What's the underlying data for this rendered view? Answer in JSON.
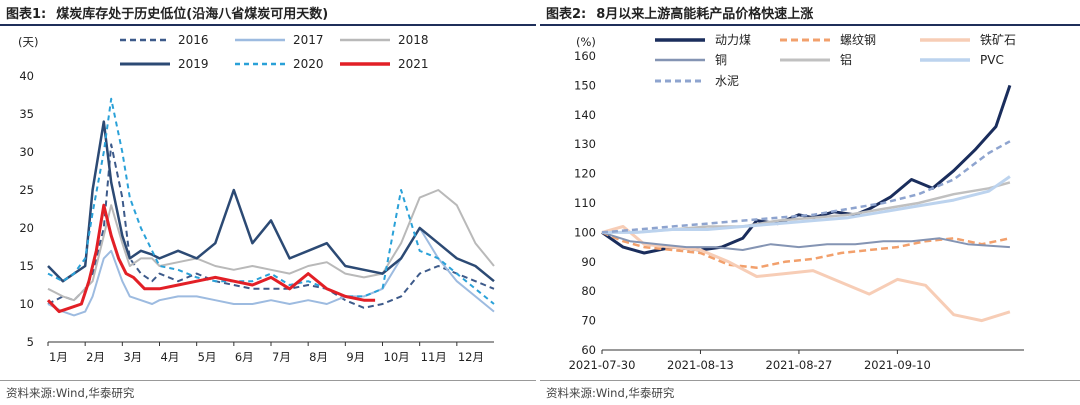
{
  "left": {
    "title_label": "图表1:",
    "title_text": "煤炭库存处于历史低位(沿海八省煤炭可用天数)",
    "source": "资料来源:Wind,华泰研究",
    "chart_data": {
      "type": "line",
      "ylabel": "(天)",
      "ylim": [
        5,
        40
      ],
      "yticks": [
        "5",
        "10",
        "15",
        "20",
        "25",
        "30",
        "35",
        "40"
      ],
      "xticks": [
        "1月",
        "2月",
        "3月",
        "4月",
        "5月",
        "6月",
        "7月",
        "8月",
        "9月",
        "10月",
        "11月",
        "12月"
      ],
      "legend_position": "top",
      "series": [
        {
          "name": "2016",
          "color": "#3d5a8a",
          "dash": "6,4",
          "width": 2,
          "x": [
            0,
            0.4,
            0.7,
            1.0,
            1.2,
            1.5,
            1.7,
            2.0,
            2.2,
            2.5,
            2.8,
            3.0,
            3.5,
            4.0,
            4.5,
            5.0,
            5.5,
            6.0,
            6.5,
            7.0,
            7.5,
            8.0,
            8.5,
            9.0,
            9.5,
            10.0,
            10.5,
            11.0,
            11.5,
            12.0
          ],
          "y": [
            10,
            11,
            10.5,
            12,
            14,
            20,
            31,
            24,
            16,
            14,
            13,
            14,
            13,
            14,
            13,
            12.5,
            12,
            12,
            12,
            12.5,
            12,
            10.5,
            9.5,
            10,
            11,
            14,
            15,
            14,
            13,
            12
          ]
        },
        {
          "name": "2017",
          "color": "#9dbbe0",
          "dash": "",
          "width": 2,
          "x": [
            0,
            0.4,
            0.7,
            1.0,
            1.2,
            1.5,
            1.7,
            2.0,
            2.2,
            2.5,
            2.8,
            3.0,
            3.5,
            4.0,
            4.5,
            5.0,
            5.5,
            6.0,
            6.5,
            7.0,
            7.5,
            8.0,
            8.5,
            9.0,
            9.5,
            10.0,
            10.5,
            11.0,
            11.5,
            12.0
          ],
          "y": [
            10,
            9,
            8.5,
            9,
            11,
            16,
            17,
            13,
            11,
            10.5,
            10,
            10.5,
            11,
            11,
            10.5,
            10,
            10,
            10.5,
            10,
            10.5,
            10,
            11,
            11,
            12,
            16,
            20,
            16,
            13,
            11,
            9
          ]
        },
        {
          "name": "2018",
          "color": "#b9b9b9",
          "dash": "",
          "width": 2,
          "x": [
            0,
            0.4,
            0.7,
            1.0,
            1.2,
            1.5,
            1.7,
            2.0,
            2.2,
            2.5,
            2.8,
            3.0,
            3.5,
            4.0,
            4.5,
            5.0,
            5.5,
            6.0,
            6.5,
            7.0,
            7.5,
            8.0,
            8.5,
            9.0,
            9.5,
            10.0,
            10.5,
            11.0,
            11.5,
            12.0
          ],
          "y": [
            12,
            11,
            10.5,
            12,
            13,
            19,
            23,
            18,
            15,
            16,
            16,
            15,
            15.5,
            16,
            15,
            14.5,
            15,
            14.5,
            14,
            15,
            15.5,
            14,
            13.5,
            14,
            18,
            24,
            25,
            23,
            18,
            15
          ]
        },
        {
          "name": "2019",
          "color": "#2c4a74",
          "dash": "",
          "width": 2.5,
          "x": [
            0,
            0.4,
            0.7,
            1.0,
            1.2,
            1.5,
            1.7,
            2.0,
            2.2,
            2.5,
            2.8,
            3.0,
            3.5,
            4.0,
            4.5,
            5.0,
            5.5,
            6.0,
            6.5,
            7.0,
            7.5,
            8.0,
            8.5,
            9.0,
            9.5,
            10.0,
            10.5,
            11.0,
            11.5,
            12.0
          ],
          "y": [
            15,
            13,
            14,
            15,
            25,
            34,
            26,
            19,
            16,
            17,
            16.5,
            16,
            17,
            16,
            18,
            25,
            18,
            21,
            16,
            17,
            18,
            15,
            14.5,
            14,
            16,
            20,
            18,
            16,
            15,
            13
          ]
        },
        {
          "name": "2020",
          "color": "#2aa1d8",
          "dash": "5,4",
          "width": 2,
          "x": [
            0,
            0.4,
            0.7,
            1.0,
            1.2,
            1.5,
            1.7,
            2.0,
            2.2,
            2.5,
            2.8,
            3.0,
            3.5,
            4.0,
            4.5,
            5.0,
            5.5,
            6.0,
            6.5,
            7.0,
            7.5,
            8.0,
            8.5,
            9.0,
            9.5,
            10.0,
            10.5,
            11.0,
            11.5,
            12.0
          ],
          "y": [
            14,
            13,
            14,
            16,
            22,
            30,
            37,
            30,
            24,
            20,
            17,
            15,
            14.5,
            13.5,
            13,
            13,
            13,
            14,
            12.5,
            13,
            12,
            11,
            11,
            12,
            25,
            17,
            16,
            14,
            12,
            10
          ]
        },
        {
          "name": "2021",
          "color": "#e21f26",
          "dash": "",
          "width": 3,
          "x": [
            0,
            0.3,
            0.6,
            0.9,
            1.1,
            1.3,
            1.5,
            1.7,
            1.9,
            2.1,
            2.3,
            2.6,
            3.0,
            3.5,
            4.0,
            4.5,
            5.0,
            5.5,
            6.0,
            6.5,
            7.0,
            7.5,
            8.0,
            8.5,
            8.8
          ],
          "y": [
            10.5,
            9,
            9.5,
            10,
            13,
            17,
            23,
            19,
            16,
            14,
            13.5,
            12,
            12,
            12.5,
            13,
            13.5,
            13,
            12.5,
            13.5,
            12,
            14,
            12,
            11,
            10.5,
            10.5
          ]
        }
      ]
    }
  },
  "right": {
    "title_label": "图表2:",
    "title_text": "8月以来上游高能耗产品价格快速上涨",
    "source": "资料来源:Wind,华泰研究",
    "chart_data": {
      "type": "line",
      "ylabel": "(%)",
      "ylim": [
        60,
        160
      ],
      "yticks": [
        "60",
        "70",
        "80",
        "90",
        "100",
        "110",
        "120",
        "130",
        "140",
        "150",
        "160"
      ],
      "xlim": [
        0,
        60
      ],
      "xticks": [
        {
          "x": 0,
          "label": "2021-07-30"
        },
        {
          "x": 14,
          "label": "2021-08-13"
        },
        {
          "x": 28,
          "label": "2021-08-27"
        },
        {
          "x": 42,
          "label": "2021-09-10"
        }
      ],
      "legend_position": "top",
      "series": [
        {
          "name": "动力煤",
          "color": "#1a2d5c",
          "dash": "",
          "width": 3,
          "x": [
            0,
            3,
            6,
            10,
            14,
            17,
            20,
            22,
            25,
            28,
            30,
            33,
            36,
            38,
            41,
            44,
            47,
            50,
            53,
            56,
            58
          ],
          "y": [
            100,
            95,
            93,
            95,
            94,
            95,
            98,
            104,
            103,
            106,
            105,
            107,
            106,
            108,
            112,
            118,
            115,
            121,
            128,
            136,
            150
          ]
        },
        {
          "name": "螺纹钢",
          "color": "#f2a06c",
          "dash": "7,4",
          "width": 2.5,
          "x": [
            0,
            3,
            6,
            10,
            14,
            18,
            22,
            26,
            30,
            34,
            38,
            42,
            46,
            50,
            54,
            58
          ],
          "y": [
            100,
            97,
            95,
            94,
            93,
            89,
            88,
            90,
            91,
            93,
            94,
            95,
            97,
            98,
            96,
            98
          ]
        },
        {
          "name": "铁矿石",
          "color": "#f7cdb6",
          "dash": "",
          "width": 3,
          "x": [
            0,
            3,
            6,
            10,
            14,
            18,
            22,
            26,
            30,
            34,
            38,
            42,
            46,
            50,
            54,
            58
          ],
          "y": [
            100,
            102,
            96,
            95,
            94,
            90,
            85,
            86,
            87,
            83,
            79,
            84,
            82,
            72,
            70,
            73
          ]
        },
        {
          "name": "铜",
          "color": "#8494b3",
          "dash": "",
          "width": 2,
          "x": [
            0,
            4,
            8,
            12,
            16,
            20,
            24,
            28,
            32,
            36,
            40,
            44,
            48,
            52,
            58
          ],
          "y": [
            100,
            97,
            96,
            95,
            95,
            94,
            96,
            95,
            96,
            96,
            97,
            97,
            98,
            96,
            95
          ]
        },
        {
          "name": "铝",
          "color": "#c0c0c0",
          "dash": "",
          "width": 2.5,
          "x": [
            0,
            5,
            10,
            15,
            20,
            25,
            30,
            35,
            40,
            45,
            50,
            55,
            58
          ],
          "y": [
            100,
            100,
            101,
            102,
            102,
            104,
            105,
            106,
            108,
            110,
            113,
            115,
            117
          ]
        },
        {
          "name": "PVC",
          "color": "#bcd3ee",
          "dash": "",
          "width": 3,
          "x": [
            0,
            5,
            10,
            15,
            20,
            25,
            30,
            35,
            40,
            45,
            50,
            55,
            58
          ],
          "y": [
            100,
            100,
            101,
            101,
            102,
            103,
            104,
            105,
            107,
            109,
            111,
            114,
            119
          ]
        },
        {
          "name": "水泥",
          "color": "#8ea4cf",
          "dash": "6,4",
          "width": 2.5,
          "x": [
            0,
            5,
            10,
            15,
            20,
            25,
            30,
            35,
            40,
            45,
            50,
            55,
            58
          ],
          "y": [
            100,
            101,
            102,
            103,
            104,
            105,
            106,
            108,
            110,
            113,
            118,
            127,
            131
          ]
        }
      ]
    }
  }
}
